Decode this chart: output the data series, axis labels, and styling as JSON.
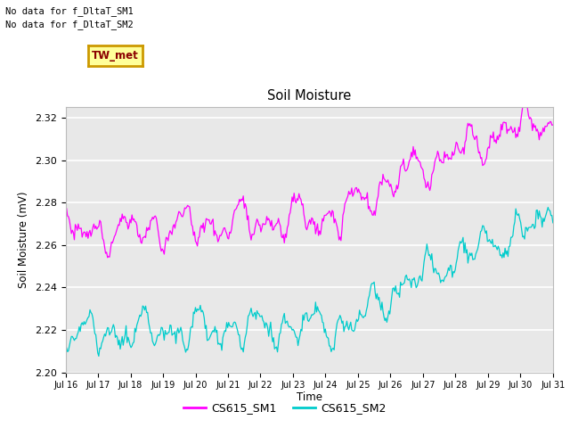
{
  "title": "Soil Moisture",
  "ylabel": "Soil Moisture (mV)",
  "xlabel": "Time",
  "ylim": [
    2.2,
    2.325
  ],
  "yticks": [
    2.2,
    2.22,
    2.24,
    2.26,
    2.28,
    2.3,
    2.32
  ],
  "xtick_labels": [
    "Jul 16",
    "Jul 17",
    "Jul 18",
    "Jul 19",
    "Jul 20",
    "Jul 21",
    "Jul 22",
    "Jul 23",
    "Jul 24",
    "Jul 25",
    "Jul 26",
    "Jul 27",
    "Jul 28",
    "Jul 29",
    "Jul 30",
    "Jul 31"
  ],
  "color_sm1": "#FF00FF",
  "color_sm2": "#00CCCC",
  "legend_entries": [
    "CS615_SM1",
    "CS615_SM2"
  ],
  "annotation_text1": "No data for f_DltaT_SM1",
  "annotation_text2": "No data for f_DltaT_SM2",
  "tw_met_label": "TW_met",
  "plot_bg_color": "#E8E8E8",
  "fig_bg_color": "#FFFFFF",
  "grid_color": "#FFFFFF",
  "tw_bg_color": "#FFFF99",
  "tw_border_color": "#CC9900",
  "tw_text_color": "#8B0000"
}
